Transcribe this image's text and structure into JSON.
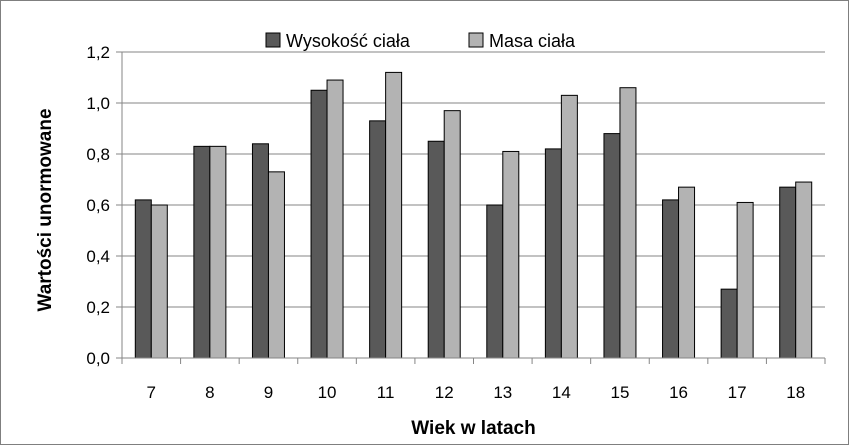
{
  "chart_data": {
    "type": "bar",
    "title": "",
    "xlabel": "Wiek w latach",
    "ylabel": "Wartości unormowane",
    "categories": [
      "7",
      "8",
      "9",
      "10",
      "11",
      "12",
      "13",
      "14",
      "15",
      "16",
      "17",
      "18"
    ],
    "series": [
      {
        "name": "Wysokość ciała",
        "color": "#595959",
        "values": [
          0.62,
          0.83,
          0.84,
          1.05,
          0.93,
          0.85,
          0.6,
          0.82,
          0.88,
          0.62,
          0.27,
          0.67
        ]
      },
      {
        "name": "Masa ciała",
        "color": "#b3b3b3",
        "values": [
          0.6,
          0.83,
          0.73,
          1.09,
          1.12,
          0.97,
          0.81,
          1.03,
          1.06,
          0.67,
          0.61,
          0.69
        ]
      }
    ],
    "ylim": [
      0,
      1.2
    ],
    "yticks": [
      "0,0",
      "0,2",
      "0,4",
      "0,6",
      "0,8",
      "1,0",
      "1,2"
    ],
    "grid": true,
    "legend_position": "top-center"
  }
}
